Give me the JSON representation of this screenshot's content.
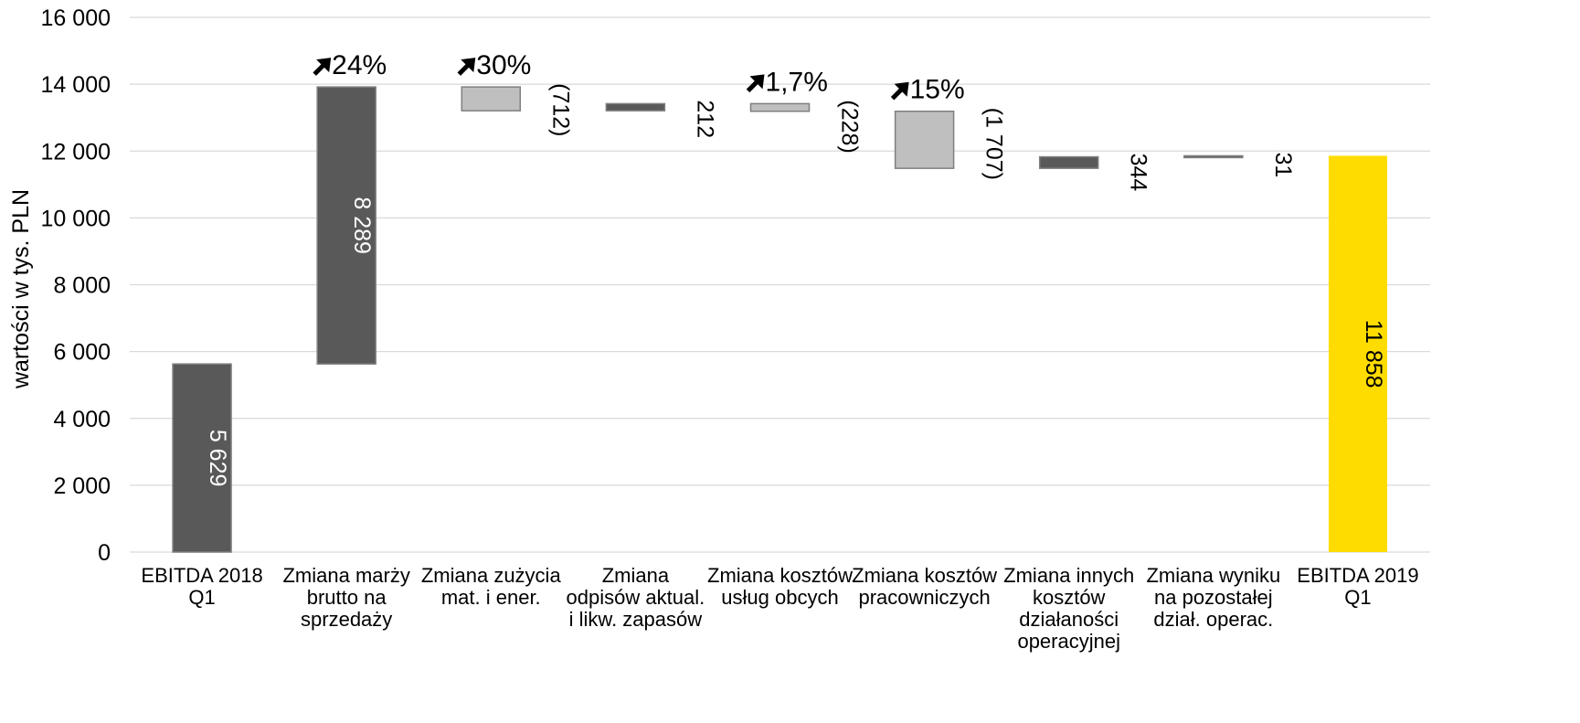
{
  "chart_data": {
    "type": "bar",
    "subtype": "waterfall",
    "ylabel": "wartości w tys. PLN",
    "ylim": [
      0,
      16000
    ],
    "yticks": [
      0,
      2000,
      4000,
      6000,
      8000,
      10000,
      12000,
      14000,
      16000
    ],
    "ytick_labels": [
      "0",
      "2 000",
      "4 000",
      "6 000",
      "8 000",
      "10 000",
      "12 000",
      "14 000",
      "16 000"
    ],
    "grid": true,
    "legend": "none",
    "colors": {
      "total": "#595959",
      "increase": "#595959",
      "decrease": "#bfbfbf",
      "final": "#ffdc00",
      "grid": "#d9d9d9"
    },
    "bars": [
      {
        "category": [
          "EBITDA 2018",
          "Q1"
        ],
        "kind": "total",
        "start": 0,
        "end": 5629,
        "label": "5 629",
        "annotation": ""
      },
      {
        "category": [
          "Zmiana marży",
          "brutto na",
          "sprzedaży"
        ],
        "kind": "increase",
        "start": 5629,
        "end": 13918,
        "label": "8 289",
        "annotation": "24%"
      },
      {
        "category": [
          "Zmiana zużycia",
          "mat. i ener."
        ],
        "kind": "decrease",
        "start": 13918,
        "end": 13206,
        "label": "(712)",
        "annotation": "30%"
      },
      {
        "category": [
          "Zmiana",
          "odpisów aktual.",
          "i likw. zapasów"
        ],
        "kind": "increase",
        "start": 13206,
        "end": 13418,
        "label": "212",
        "annotation": ""
      },
      {
        "category": [
          "Zmiana kosztów",
          "usług obcych"
        ],
        "kind": "decrease",
        "start": 13418,
        "end": 13190,
        "label": "(228)",
        "annotation": "1,7%"
      },
      {
        "category": [
          "Zmiana kosztów",
          "pracowniczych"
        ],
        "kind": "decrease",
        "start": 13190,
        "end": 11483,
        "label": "(1 707)",
        "annotation": "15%"
      },
      {
        "category": [
          "Zmiana innych",
          "kosztów",
          "działaności",
          "operacyjnej"
        ],
        "kind": "increase",
        "start": 11483,
        "end": 11827,
        "label": "344",
        "annotation": ""
      },
      {
        "category": [
          "Zmiana wyniku",
          "na pozostałej",
          "dział. operac."
        ],
        "kind": "increase",
        "start": 11827,
        "end": 11858,
        "label": "31",
        "annotation": ""
      },
      {
        "category": [
          "EBITDA 2019",
          "Q1"
        ],
        "kind": "final",
        "start": 0,
        "end": 11858,
        "label": "11 858",
        "annotation": ""
      }
    ]
  }
}
